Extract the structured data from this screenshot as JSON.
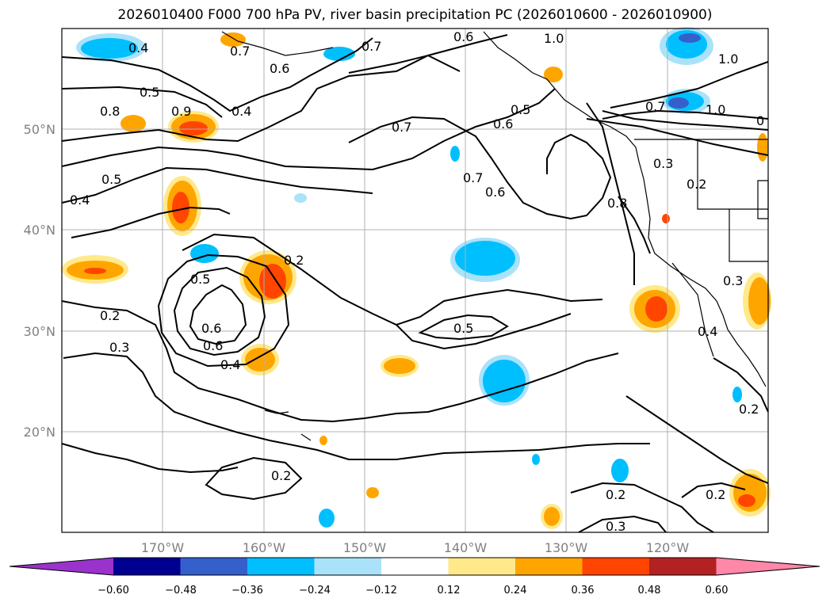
{
  "title": "2026010400 F000 700 hPa PV, river basin precipitation PC (2026010600 - 2026010900)",
  "map": {
    "lon_range": [
      -180,
      -110
    ],
    "lat_range": [
      10,
      60
    ],
    "lat_ticks": [
      "50°N",
      "40°N",
      "30°N",
      "20°N"
    ],
    "lon_ticks": [
      "170°W",
      "160°W",
      "150°W",
      "140°W",
      "130°W",
      "120°W"
    ],
    "grid": true
  },
  "contour_labels": [
    "0.4",
    "0.7",
    "0.6",
    "0.7",
    "0.6",
    "1.0",
    "1.0",
    "0.5",
    "0.8",
    "0.9",
    "0.4",
    "0.5",
    "0.6",
    "0.7",
    "0.7",
    "1.0",
    "0.5",
    "0.4",
    "0.3",
    "0.2",
    "0.8",
    "0.2",
    "0.7",
    "0.6",
    "0.4",
    "0.2",
    "0.3",
    "0.5",
    "0.5",
    "0.2",
    "0.2",
    "0.2",
    "0.3",
    "0.2",
    "0.3",
    "0.4",
    "0"
  ],
  "colorbar": {
    "ticks": [
      "−0.60",
      "−0.48",
      "−0.36",
      "−0.24",
      "−0.12",
      "0.12",
      "0.24",
      "0.36",
      "0.48",
      "0.60"
    ],
    "colors": [
      "#9a33cc",
      "#000090",
      "#3560cc",
      "#00bfff",
      "#aae2fa",
      "#ffffff",
      "#ffe98a",
      "#ffa500",
      "#ff4500",
      "#b22222",
      "#ff87a8"
    ]
  }
}
